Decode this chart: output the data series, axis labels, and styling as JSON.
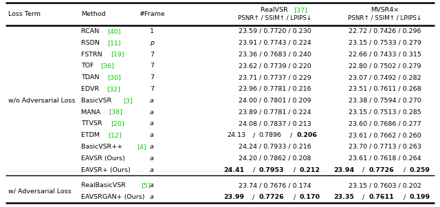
{
  "header_row1": [
    "Loss Term",
    "Method",
    "#Frame",
    "RealVSR ",
    "[37]",
    "MVSR4×"
  ],
  "header_row2": [
    "",
    "",
    "",
    "PSNR↑ / SSIM↑ / LPIPS↓",
    "",
    "PSNR↑ / SSIM↑ / LPIPS↓"
  ],
  "sections": [
    {
      "group_label": "w/o Adversarial Loss",
      "rows": [
        {
          "method": "RCAN ",
          "ref": "[40]",
          "frame": "1",
          "fi": false,
          "realvsr": "23.59 / 0.7720 / 0.230",
          "mvsr": "22.72 / 0.7426 / 0.296",
          "br": [],
          "bm": []
        },
        {
          "method": "RSDN ",
          "ref": "[11]",
          "frame": "p",
          "fi": true,
          "realvsr": "23.91 / 0.7743 / 0.224",
          "mvsr": "23.15 / 0.7533 / 0.279",
          "br": [],
          "bm": []
        },
        {
          "method": "FSTRN ",
          "ref": "[19]",
          "frame": "7",
          "fi": false,
          "realvsr": "23.36 / 0.7683 / 0.240",
          "mvsr": "22.66 / 0.7433 / 0.315",
          "br": [],
          "bm": []
        },
        {
          "method": "TOF ",
          "ref": "[36]",
          "frame": "7",
          "fi": false,
          "realvsr": "23.62 / 0.7739 / 0.220",
          "mvsr": "22.80 / 0.7502 / 0.279",
          "br": [],
          "bm": []
        },
        {
          "method": "TDAN ",
          "ref": "[30]",
          "frame": "7",
          "fi": false,
          "realvsr": "23.71 / 0.7737 / 0.229",
          "mvsr": "23.07 / 0.7492 / 0.282",
          "br": [],
          "bm": []
        },
        {
          "method": "EDVR ",
          "ref": "[32]",
          "frame": "7",
          "fi": false,
          "realvsr": "23.96 / 0.7781 / 0.216",
          "mvsr": "23.51 / 0.7611 / 0.268",
          "br": [],
          "bm": []
        },
        {
          "method": "BasicVSR ",
          "ref": "[3]",
          "frame": "a",
          "fi": true,
          "realvsr": "24.00 / 0.7801 / 0.209",
          "mvsr": "23.38 / 0.7594 / 0.270",
          "br": [],
          "bm": []
        },
        {
          "method": "MANA ",
          "ref": "[38]",
          "frame": "a",
          "fi": true,
          "realvsr": "23.89 / 0.7781 / 0.224",
          "mvsr": "23.15 / 0.7513 / 0.285",
          "br": [],
          "bm": []
        },
        {
          "method": "TTVSR ",
          "ref": "[20]",
          "frame": "a",
          "fi": true,
          "realvsr": "24.08 / 0.7837 / 0.213",
          "mvsr": "23.60 / 0.7686 / 0.277",
          "br": [],
          "bm": []
        },
        {
          "method": "ETDM ",
          "ref": "[12]",
          "frame": "a",
          "fi": true,
          "realvsr": "24.13 / 0.7896 / 0.206",
          "mvsr": "23.61 / 0.7662 / 0.260",
          "br": [
            3
          ],
          "bm": []
        },
        {
          "method": "BasicVSR++ ",
          "ref": "[4]",
          "frame": "a",
          "fi": true,
          "realvsr": "24.24 / 0.7933 / 0.216",
          "mvsr": "23.70 / 0.7713 / 0.263",
          "br": [],
          "bm": []
        },
        {
          "method": "EAVSR (Ours)",
          "ref": "",
          "frame": "a",
          "fi": true,
          "realvsr": "24.20 / 0.7862 / 0.208",
          "mvsr": "23.61 / 0.7618 / 0.264",
          "br": [],
          "bm": []
        },
        {
          "method": "EAVSR+ (Ours)",
          "ref": "",
          "frame": "a",
          "fi": true,
          "realvsr": "24.41 / 0.7953 / 0.212",
          "mvsr": "23.94 / 0.7726 / 0.259",
          "br": [
            1,
            2,
            3
          ],
          "bm": [
            1,
            2,
            3
          ]
        }
      ]
    },
    {
      "group_label": "w/ Adversarial Loss",
      "rows": [
        {
          "method": "RealBasicVSR ",
          "ref": "[5]",
          "frame": "a",
          "fi": true,
          "realvsr": "23.74 / 0.7676 / 0.174",
          "mvsr": "23.15 / 0.7603 / 0.202",
          "br": [],
          "bm": []
        },
        {
          "method": "EAVSRGAN+ (Ours)",
          "ref": "",
          "frame": "a",
          "fi": true,
          "realvsr": "23.99 / 0.7726 / 0.170",
          "mvsr": "23.35 / 0.7611 / 0.199",
          "br": [
            1,
            2,
            3
          ],
          "bm": [
            1,
            2,
            3
          ]
        }
      ]
    }
  ],
  "bg_color": "#ffffff",
  "text_color": "#000000",
  "ref_color": "#00cc00",
  "line_color": "#000000",
  "fontsize": 6.8,
  "header_fontsize": 6.8
}
